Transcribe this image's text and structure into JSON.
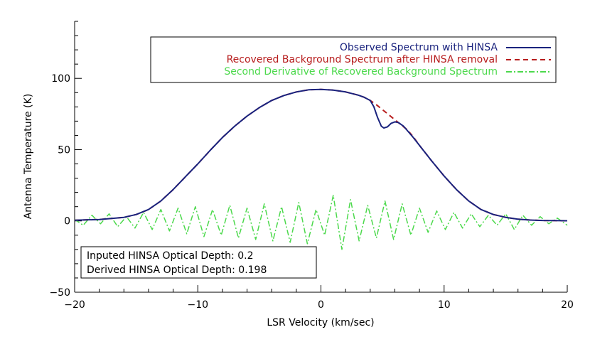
{
  "chart_data": {
    "type": "line",
    "xlabel": "LSR Velocity (km/sec)",
    "ylabel": "Antenna Temperature (K)",
    "xlim": [
      -20,
      20
    ],
    "ylim": [
      -50,
      140
    ],
    "x_ticks": [
      -20,
      -10,
      0,
      10,
      20
    ],
    "x_tick_labels": [
      "−20",
      "−10",
      "0",
      "10",
      "20"
    ],
    "y_ticks": [
      -50,
      0,
      50,
      100
    ],
    "y_tick_labels": [
      "−50",
      "0",
      "50",
      "100"
    ],
    "grid": false,
    "legend_position": "top-right",
    "series": [
      {
        "name": "Observed Spectrum with HINSA",
        "color": "#1a237e",
        "style": "solid",
        "x": [
          -20,
          -18,
          -16,
          -15,
          -14,
          -13,
          -12,
          -11,
          -10,
          -9,
          -8,
          -7,
          -6,
          -5,
          -4,
          -3,
          -2,
          -1,
          0,
          1,
          2,
          3,
          3.5,
          4,
          4.3,
          4.6,
          4.9,
          5.1,
          5.4,
          5.7,
          6,
          6.3,
          6.7,
          7,
          7.5,
          8,
          9,
          10,
          11,
          12,
          13,
          14,
          15,
          16,
          17,
          18,
          19,
          20
        ],
        "y": [
          0.5,
          1,
          2.5,
          4.5,
          8,
          14,
          22,
          31,
          40,
          49.5,
          58.5,
          66.5,
          73.5,
          79.5,
          84.5,
          88,
          90.5,
          92,
          92.3,
          91.8,
          90.5,
          88.3,
          86.8,
          84.5,
          80,
          72.5,
          66.5,
          65.2,
          66,
          68.5,
          69.5,
          69,
          66.5,
          63.5,
          58.5,
          53,
          42,
          31.5,
          22,
          14,
          8,
          4.5,
          2.5,
          1.2,
          0.6,
          0.3,
          0.2,
          0.1
        ]
      },
      {
        "name": "Recovered Background Spectrum after HINSA removal",
        "color": "#b71c1c",
        "style": "dashed",
        "x": [
          -20,
          -18,
          -16,
          -15,
          -14,
          -13,
          -12,
          -11,
          -10,
          -9,
          -8,
          -7,
          -6,
          -5,
          -4,
          -3,
          -2,
          -1,
          0,
          1,
          2,
          3,
          3.5,
          4,
          4.5,
          5,
          5.5,
          6,
          6.5,
          7,
          7.5,
          8,
          9,
          10,
          11,
          12,
          13,
          14,
          15,
          16,
          17,
          18,
          19,
          20
        ],
        "y": [
          0.5,
          1,
          2.5,
          4.5,
          8,
          14,
          22,
          31,
          40,
          49.5,
          58.5,
          66.5,
          73.5,
          79.5,
          84.5,
          88,
          90.5,
          92,
          92.3,
          91.8,
          90.5,
          88.3,
          86.8,
          84.5,
          81.5,
          78,
          74.5,
          71,
          67.5,
          64,
          59,
          53,
          42,
          31.5,
          22,
          14,
          8,
          4.5,
          2.5,
          1.2,
          0.6,
          0.3,
          0.2,
          0.1
        ]
      },
      {
        "name": "Second Derivative of Recovered Background Spectrum",
        "color": "#4cd94c",
        "style": "dash-dot",
        "x": [
          -20,
          -19.3,
          -18.6,
          -17.9,
          -17.2,
          -16.5,
          -15.8,
          -15.1,
          -14.4,
          -13.7,
          -13,
          -12.3,
          -11.6,
          -10.9,
          -10.2,
          -9.5,
          -8.8,
          -8.1,
          -7.4,
          -6.7,
          -6,
          -5.3,
          -4.6,
          -3.9,
          -3.2,
          -2.5,
          -1.8,
          -1.1,
          -0.4,
          0.3,
          1,
          1.7,
          2.4,
          3.1,
          3.8,
          4.5,
          5.2,
          5.9,
          6.6,
          7.3,
          8,
          8.7,
          9.4,
          10.1,
          10.8,
          11.5,
          12.2,
          12.9,
          13.6,
          14.3,
          15,
          15.7,
          16.4,
          17.1,
          17.8,
          18.5,
          19.2,
          20
        ],
        "y": [
          1,
          -3,
          4,
          -2,
          5,
          -4,
          3,
          -5,
          6,
          -6,
          8,
          -7,
          9,
          -9,
          10,
          -11,
          8,
          -10,
          11,
          -12,
          9,
          -13,
          12,
          -14,
          10,
          -15,
          13,
          -16,
          8,
          -10,
          18,
          -20,
          15,
          -14,
          11,
          -12,
          14,
          -13,
          12,
          -10,
          9,
          -8,
          7,
          -6,
          6,
          -5,
          5,
          -4,
          4,
          -3,
          5,
          -6,
          4,
          -3,
          3,
          -2,
          2,
          -3
        ]
      }
    ],
    "annotations": [
      "Inputed HINSA Optical Depth: 0.2",
      "Derived HINSA Optical Depth: 0.198"
    ]
  }
}
